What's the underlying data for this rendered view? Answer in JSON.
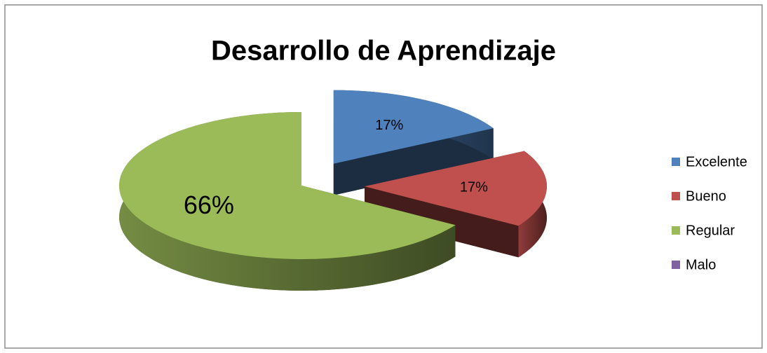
{
  "chart_data": {
    "type": "pie",
    "title": "Desarrollo de Aprendizaje",
    "categories": [
      "Excelente",
      "Bueno",
      "Regular",
      "Malo"
    ],
    "values": [
      17,
      17,
      66,
      0
    ],
    "value_labels": [
      "17%",
      "17%",
      "66%",
      null
    ],
    "colors": [
      "#4f81bd",
      "#c0504d",
      "#9bbb59",
      "#8064a2"
    ],
    "legend": "right"
  }
}
